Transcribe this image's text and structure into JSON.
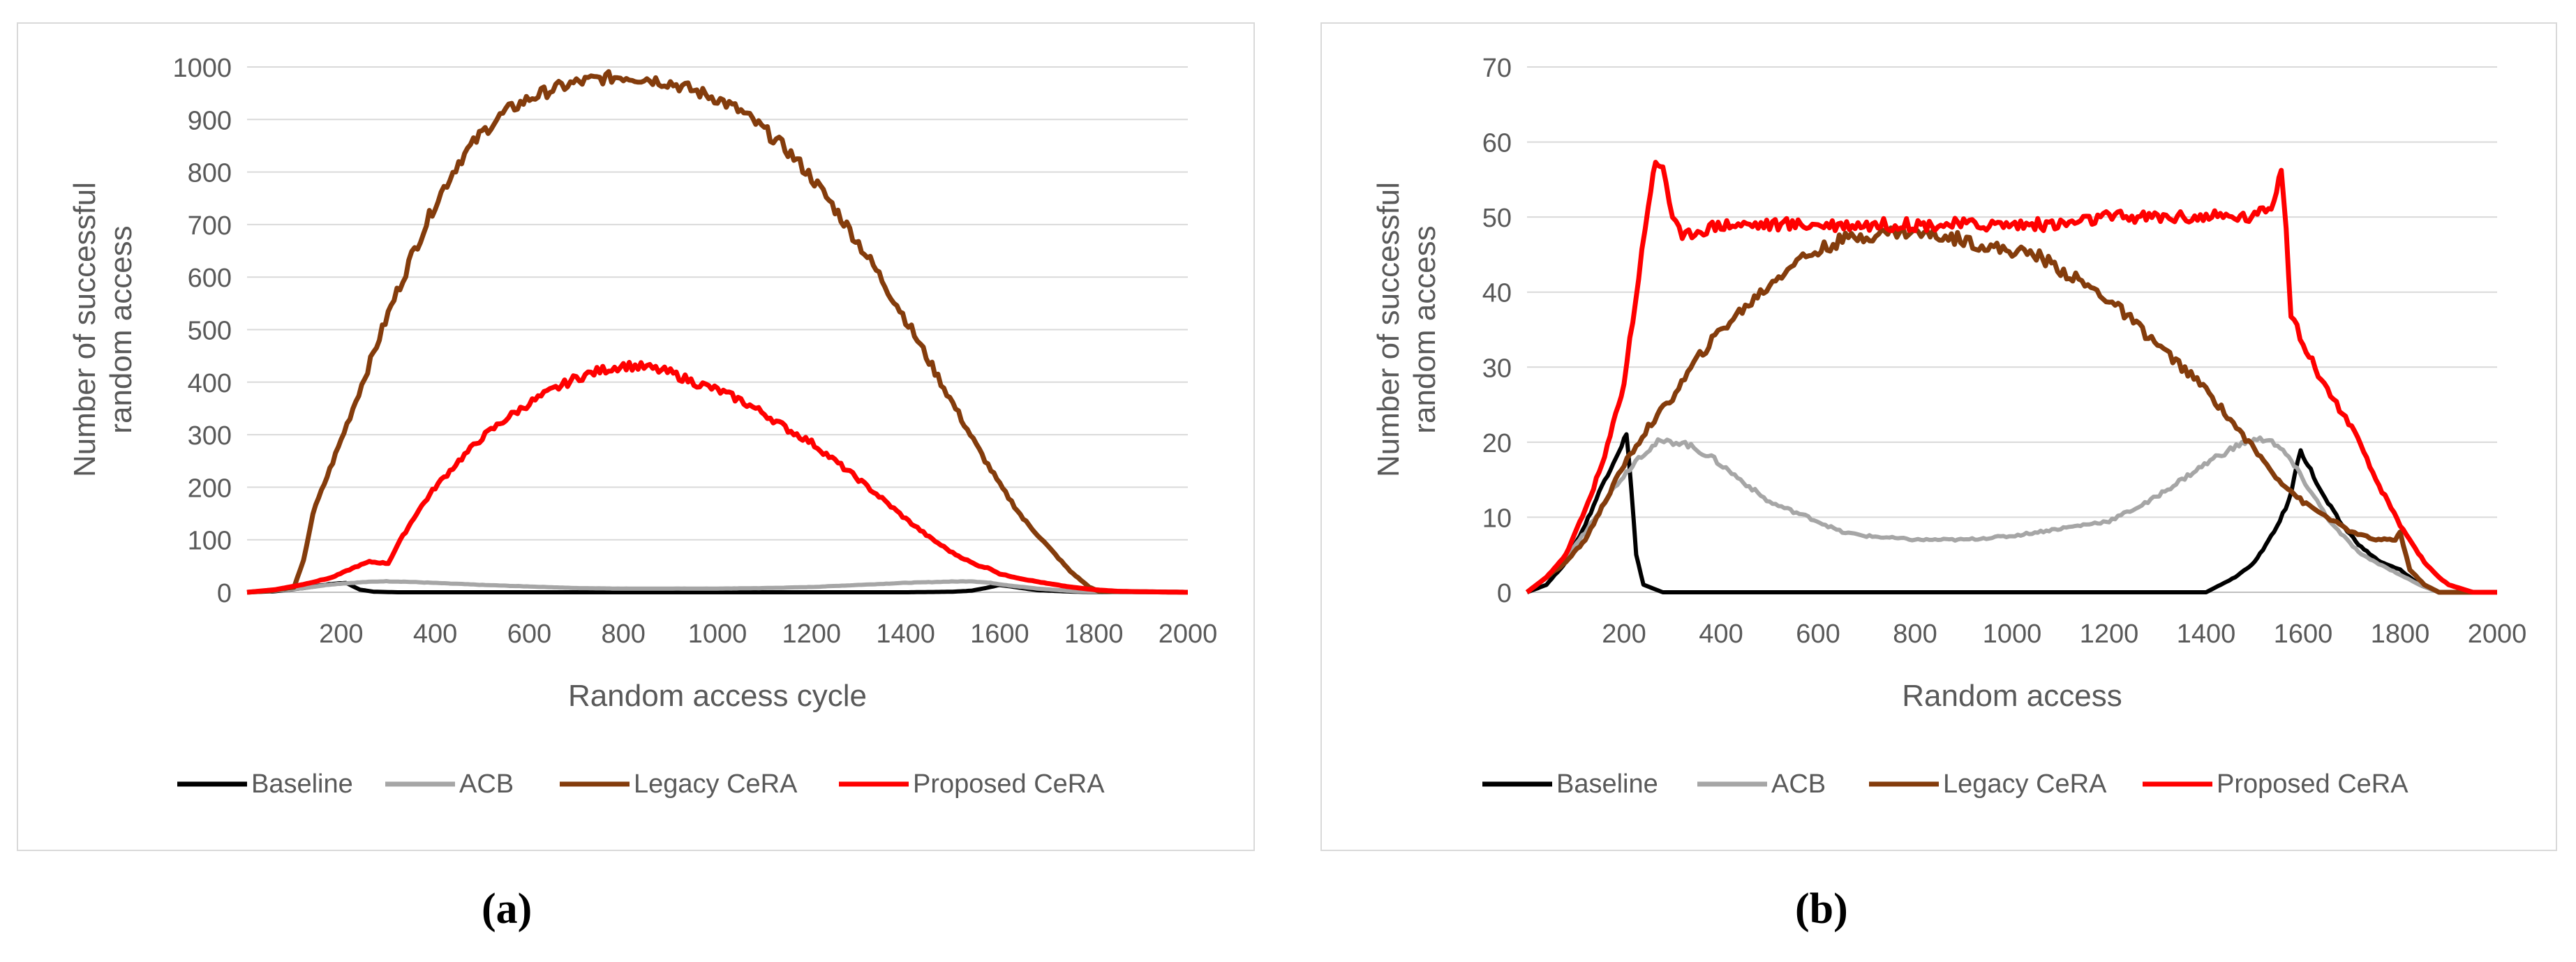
{
  "chart_data": [
    {
      "type": "line",
      "id": "a",
      "title": "",
      "xlabel": "Random access cycle",
      "ylabel": [
        "Number of successful",
        "random access"
      ],
      "xlim": [
        0,
        2000
      ],
      "ylim": [
        0,
        1000
      ],
      "xticks": [
        200,
        400,
        600,
        800,
        1000,
        1200,
        1400,
        1600,
        1800,
        2000
      ],
      "yticks": [
        0,
        100,
        200,
        300,
        400,
        500,
        600,
        700,
        800,
        900,
        1000
      ],
      "grid": true,
      "legend_position": "bottom",
      "series": [
        {
          "name": "Baseline",
          "color": "#000000",
          "width": 6,
          "points": [
            [
              0,
              0
            ],
            [
              60,
              2
            ],
            [
              120,
              8
            ],
            [
              180,
              16
            ],
            [
              210,
              18
            ],
            [
              240,
              5
            ],
            [
              270,
              1
            ],
            [
              320,
              0
            ],
            [
              800,
              0
            ],
            [
              1400,
              0
            ],
            [
              1500,
              1
            ],
            [
              1540,
              3
            ],
            [
              1570,
              8
            ],
            [
              1600,
              14
            ],
            [
              1630,
              10
            ],
            [
              1680,
              4
            ],
            [
              1760,
              1
            ],
            [
              1820,
              0
            ],
            [
              2000,
              0
            ]
          ]
        },
        {
          "name": "ACB",
          "color": "#a6a6a6",
          "width": 6,
          "points": [
            [
              0,
              0
            ],
            [
              60,
              3
            ],
            [
              120,
              8
            ],
            [
              180,
              15
            ],
            [
              240,
              19
            ],
            [
              290,
              21
            ],
            [
              340,
              20
            ],
            [
              420,
              17
            ],
            [
              500,
              14
            ],
            [
              600,
              11
            ],
            [
              700,
              8
            ],
            [
              800,
              7
            ],
            [
              900,
              7
            ],
            [
              1000,
              7
            ],
            [
              1100,
              8
            ],
            [
              1200,
              10
            ],
            [
              1300,
              14
            ],
            [
              1400,
              18
            ],
            [
              1480,
              20
            ],
            [
              1540,
              21
            ],
            [
              1580,
              18
            ],
            [
              1620,
              13
            ],
            [
              1680,
              7
            ],
            [
              1760,
              2
            ],
            [
              1840,
              0
            ],
            [
              2000,
              0
            ]
          ]
        },
        {
          "name": "Legacy CeRA",
          "color": "#843c0c",
          "width": 7,
          "points": [
            [
              0,
              0
            ],
            [
              50,
              3
            ],
            [
              100,
              10
            ],
            [
              120,
              60
            ],
            [
              140,
              150
            ],
            [
              200,
              290
            ],
            [
              250,
              410
            ],
            [
              300,
              530
            ],
            [
              350,
              640
            ],
            [
              400,
              740
            ],
            [
              450,
              820
            ],
            [
              500,
              875
            ],
            [
              550,
              915
            ],
            [
              600,
              940
            ],
            [
              650,
              958
            ],
            [
              700,
              970
            ],
            [
              750,
              978
            ],
            [
              800,
              982
            ],
            [
              850,
              978
            ],
            [
              900,
              970
            ],
            [
              950,
              955
            ],
            [
              1000,
              940
            ],
            [
              1050,
              915
            ],
            [
              1100,
              880
            ],
            [
              1150,
              840
            ],
            [
              1200,
              790
            ],
            [
              1250,
              730
            ],
            [
              1300,
              665
            ],
            [
              1350,
              595
            ],
            [
              1400,
              520
            ],
            [
              1450,
              440
            ],
            [
              1500,
              360
            ],
            [
              1550,
              280
            ],
            [
              1600,
              205
            ],
            [
              1650,
              140
            ],
            [
              1700,
              90
            ],
            [
              1750,
              40
            ],
            [
              1790,
              10
            ],
            [
              1810,
              2
            ],
            [
              2000,
              0
            ]
          ]
        },
        {
          "name": "Proposed CeRA",
          "color": "#ff0000",
          "width": 7,
          "points": [
            [
              0,
              0
            ],
            [
              60,
              5
            ],
            [
              120,
              15
            ],
            [
              180,
              28
            ],
            [
              230,
              48
            ],
            [
              260,
              58
            ],
            [
              300,
              55
            ],
            [
              320,
              90
            ],
            [
              360,
              150
            ],
            [
              400,
              200
            ],
            [
              450,
              250
            ],
            [
              500,
              295
            ],
            [
              550,
              330
            ],
            [
              600,
              360
            ],
            [
              650,
              385
            ],
            [
              700,
              408
            ],
            [
              750,
              422
            ],
            [
              800,
              432
            ],
            [
              850,
              428
            ],
            [
              900,
              418
            ],
            [
              950,
              400
            ],
            [
              1000,
              385
            ],
            [
              1050,
              365
            ],
            [
              1100,
              340
            ],
            [
              1150,
              310
            ],
            [
              1200,
              285
            ],
            [
              1250,
              250
            ],
            [
              1300,
              215
            ],
            [
              1350,
              178
            ],
            [
              1400,
              140
            ],
            [
              1450,
              105
            ],
            [
              1500,
              75
            ],
            [
              1550,
              52
            ],
            [
              1580,
              45
            ],
            [
              1600,
              35
            ],
            [
              1650,
              25
            ],
            [
              1700,
              17
            ],
            [
              1750,
              10
            ],
            [
              1800,
              5
            ],
            [
              1850,
              2
            ],
            [
              1900,
              1
            ],
            [
              2000,
              0
            ]
          ]
        }
      ]
    },
    {
      "type": "line",
      "id": "b",
      "title": "",
      "xlabel": "Random access",
      "ylabel": [
        "Number of successful",
        "random access"
      ],
      "xlim": [
        0,
        2000
      ],
      "ylim": [
        0,
        70
      ],
      "xticks": [
        200,
        400,
        600,
        800,
        1000,
        1200,
        1400,
        1600,
        1800,
        2000
      ],
      "yticks": [
        0,
        10,
        20,
        30,
        40,
        50,
        60,
        70
      ],
      "grid": true,
      "legend_position": "bottom",
      "series": [
        {
          "name": "Baseline",
          "color": "#000000",
          "width": 6,
          "points": [
            [
              0,
              0
            ],
            [
              40,
              1
            ],
            [
              80,
              4
            ],
            [
              120,
              9
            ],
            [
              160,
              15
            ],
            [
              190,
              19
            ],
            [
              205,
              21
            ],
            [
              215,
              14
            ],
            [
              225,
              5
            ],
            [
              240,
              1
            ],
            [
              280,
              0
            ],
            [
              800,
              0
            ],
            [
              1400,
              0
            ],
            [
              1460,
              2
            ],
            [
              1500,
              4
            ],
            [
              1540,
              8
            ],
            [
              1570,
              12
            ],
            [
              1595,
              19
            ],
            [
              1610,
              17
            ],
            [
              1640,
              13
            ],
            [
              1680,
              9
            ],
            [
              1720,
              6
            ],
            [
              1760,
              4
            ],
            [
              1800,
              3
            ],
            [
              1840,
              1
            ],
            [
              1880,
              0
            ],
            [
              2000,
              0
            ]
          ]
        },
        {
          "name": "ACB",
          "color": "#a6a6a6",
          "width": 6,
          "points": [
            [
              0,
              0
            ],
            [
              60,
              3
            ],
            [
              120,
              8
            ],
            [
              180,
              14
            ],
            [
              230,
              18
            ],
            [
              270,
              20
            ],
            [
              320,
              20
            ],
            [
              380,
              18
            ],
            [
              440,
              15
            ],
            [
              500,
              12
            ],
            [
              580,
              10
            ],
            [
              650,
              8
            ],
            [
              700,
              7.5
            ],
            [
              800,
              7
            ],
            [
              900,
              7
            ],
            [
              1000,
              7.5
            ],
            [
              1100,
              8.5
            ],
            [
              1200,
              9.5
            ],
            [
              1280,
              12
            ],
            [
              1350,
              15
            ],
            [
              1420,
              18
            ],
            [
              1480,
              20
            ],
            [
              1530,
              20.5
            ],
            [
              1570,
              18
            ],
            [
              1610,
              14
            ],
            [
              1660,
              9
            ],
            [
              1720,
              5
            ],
            [
              1780,
              3
            ],
            [
              1840,
              1
            ],
            [
              1880,
              0
            ],
            [
              2000,
              0
            ]
          ]
        },
        {
          "name": "Legacy CeRA",
          "color": "#843c0c",
          "width": 7,
          "points": [
            [
              0,
              0
            ],
            [
              40,
              2
            ],
            [
              80,
              4
            ],
            [
              120,
              7
            ],
            [
              160,
              12
            ],
            [
              200,
              17
            ],
            [
              250,
              22
            ],
            [
              300,
              26
            ],
            [
              350,
              31
            ],
            [
              400,
              35
            ],
            [
              450,
              38
            ],
            [
              500,
              41
            ],
            [
              550,
              44
            ],
            [
              600,
              45.5
            ],
            [
              650,
              47
            ],
            [
              700,
              47.5
            ],
            [
              750,
              48
            ],
            [
              800,
              48
            ],
            [
              850,
              47.5
            ],
            [
              900,
              47
            ],
            [
              950,
              46
            ],
            [
              1000,
              45.5
            ],
            [
              1050,
              45
            ],
            [
              1100,
              43
            ],
            [
              1150,
              41
            ],
            [
              1200,
              39
            ],
            [
              1250,
              36
            ],
            [
              1300,
              33
            ],
            [
              1350,
              30
            ],
            [
              1400,
              27
            ],
            [
              1450,
              23
            ],
            [
              1500,
              19
            ],
            [
              1550,
              15
            ],
            [
              1600,
              12
            ],
            [
              1650,
              10
            ],
            [
              1700,
              8
            ],
            [
              1750,
              7
            ],
            [
              1790,
              7
            ],
            [
              1800,
              8
            ],
            [
              1820,
              3
            ],
            [
              1850,
              1
            ],
            [
              1880,
              0
            ],
            [
              2000,
              0
            ]
          ]
        },
        {
          "name": "Proposed CeRA",
          "color": "#ff0000",
          "width": 7,
          "points": [
            [
              0,
              0
            ],
            [
              40,
              2
            ],
            [
              80,
              5
            ],
            [
              120,
              11
            ],
            [
              160,
              18
            ],
            [
              200,
              28
            ],
            [
              230,
              42
            ],
            [
              250,
              52
            ],
            [
              265,
              57
            ],
            [
              280,
              57
            ],
            [
              300,
              50
            ],
            [
              320,
              47
            ],
            [
              340,
              48
            ],
            [
              400,
              49
            ],
            [
              500,
              49
            ],
            [
              600,
              49
            ],
            [
              700,
              49
            ],
            [
              800,
              49
            ],
            [
              900,
              49
            ],
            [
              1000,
              49
            ],
            [
              1100,
              49
            ],
            [
              1200,
              50
            ],
            [
              1300,
              50
            ],
            [
              1400,
              50
            ],
            [
              1500,
              50
            ],
            [
              1540,
              52
            ],
            [
              1555,
              57
            ],
            [
              1565,
              49
            ],
            [
              1575,
              37
            ],
            [
              1600,
              33
            ],
            [
              1650,
              27
            ],
            [
              1700,
              22
            ],
            [
              1750,
              15
            ],
            [
              1800,
              9
            ],
            [
              1850,
              4
            ],
            [
              1880,
              2
            ],
            [
              1900,
              1
            ],
            [
              1950,
              0
            ],
            [
              2000,
              0
            ]
          ]
        }
      ]
    }
  ],
  "sublabels": {
    "a": "(a)",
    "b": "(b)"
  }
}
